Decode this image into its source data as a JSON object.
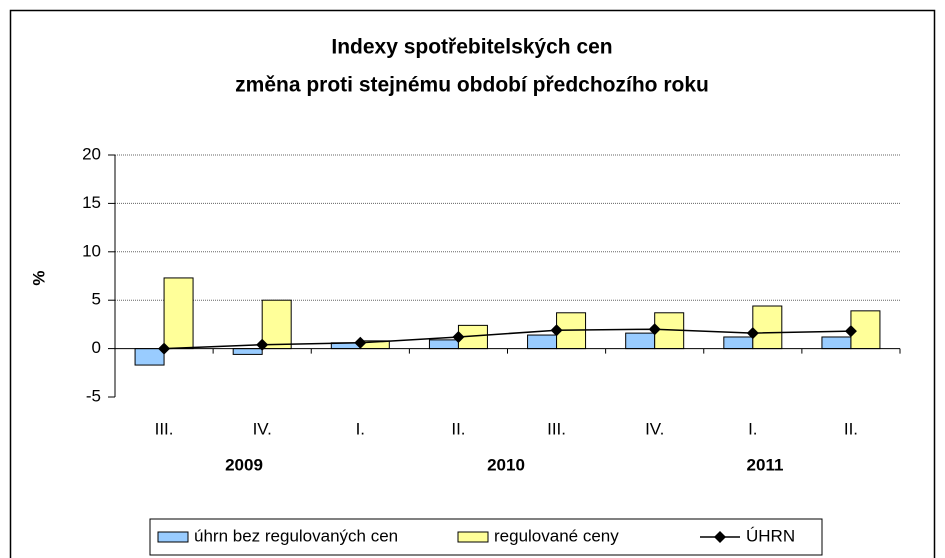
{
  "chart_data": {
    "type": "bar_line",
    "title": "Indexy spotřebitelských cen",
    "subtitle": "změna proti stejnému období předchozího roku",
    "y_label": "%",
    "categories": [
      "III.",
      "IV.",
      "I.",
      "II.",
      "III.",
      "IV.",
      "I.",
      "II."
    ],
    "years": [
      "2009",
      "2010",
      "2011"
    ],
    "series": [
      {
        "name": "úhrn bez regulovaných cen",
        "color": "#99ccff",
        "kind": "bar",
        "values": [
          -1.7,
          -0.6,
          0.6,
          0.9,
          1.4,
          1.6,
          1.2,
          1.2
        ]
      },
      {
        "name": "regulované ceny",
        "color": "#ffff99",
        "kind": "bar",
        "values": [
          7.3,
          5.0,
          0.8,
          2.4,
          3.7,
          3.7,
          4.4,
          3.9
        ]
      },
      {
        "name": "ÚHRN",
        "color": "#000000",
        "kind": "line",
        "values": [
          0.0,
          0.4,
          0.6,
          1.2,
          1.9,
          2.0,
          1.6,
          1.8
        ]
      }
    ],
    "ylim": [
      -5,
      20
    ],
    "yticks": [
      -5,
      0,
      5,
      10,
      15,
      20
    ],
    "grid": true,
    "legend": "bottom"
  }
}
